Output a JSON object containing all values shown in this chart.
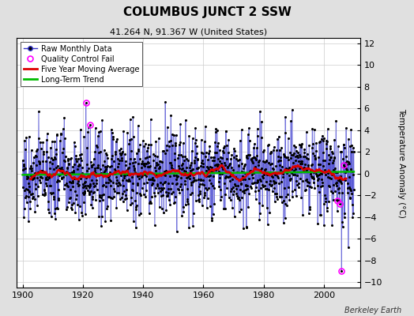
{
  "title": "COLUMBUS JUNCT 2 SSW",
  "subtitle": "41.264 N, 91.367 W (United States)",
  "ylabel": "Temperature Anomaly (°C)",
  "credit": "Berkeley Earth",
  "xlim": [
    1898,
    2012
  ],
  "ylim": [
    -10.5,
    12.5
  ],
  "yticks": [
    -10,
    -8,
    -6,
    -4,
    -2,
    0,
    2,
    4,
    6,
    8,
    10,
    12
  ],
  "xticks": [
    1900,
    1920,
    1940,
    1960,
    1980,
    2000
  ],
  "bg_color": "#e0e0e0",
  "plot_bg_color": "#ffffff",
  "raw_line_color": "#3333cc",
  "raw_dot_color": "#000000",
  "moving_avg_color": "#dd0000",
  "trend_color": "#00bb00",
  "qc_fail_color": "#ff00ff",
  "seed": 77,
  "n_months": 1320,
  "start_year": 1900,
  "noise_std": 2.0
}
